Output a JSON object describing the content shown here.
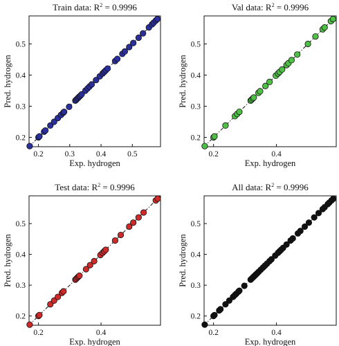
{
  "colors": {
    "train": "#2b2f9c",
    "val": "#4fbf47",
    "test": "#cf2a2a",
    "all": "#111111",
    "fit_line": "#222222"
  },
  "chart_data": [
    {
      "type": "scatter",
      "title_prefix": "Train data: R",
      "title_sup": "2",
      "title_suffix": " = 0.9996",
      "xlabel": "Exp. hydrogen",
      "ylabel": "Pred. hydrogen",
      "xlim": [
        0.17,
        0.59
      ],
      "ylim": [
        0.17,
        0.59
      ],
      "xticks": [
        "0.2",
        "0.3",
        "0.4",
        "0.5"
      ],
      "yticks": [
        "0.2",
        "0.3",
        "0.4",
        "0.5"
      ],
      "fit_line": "dash-dot",
      "color_key": "train",
      "x": [
        0.172,
        0.2,
        0.203,
        0.218,
        0.222,
        0.238,
        0.25,
        0.262,
        0.272,
        0.279,
        0.282,
        0.298,
        0.318,
        0.321,
        0.325,
        0.328,
        0.331,
        0.334,
        0.338,
        0.35,
        0.357,
        0.363,
        0.37,
        0.384,
        0.396,
        0.405,
        0.41,
        0.415,
        0.421,
        0.445,
        0.452,
        0.468,
        0.476,
        0.49,
        0.503,
        0.52,
        0.534,
        0.553,
        0.563,
        0.568,
        0.575,
        0.58
      ],
      "y": [
        0.172,
        0.2,
        0.203,
        0.218,
        0.222,
        0.238,
        0.25,
        0.262,
        0.272,
        0.279,
        0.282,
        0.298,
        0.318,
        0.321,
        0.325,
        0.328,
        0.331,
        0.334,
        0.338,
        0.35,
        0.357,
        0.363,
        0.37,
        0.384,
        0.396,
        0.405,
        0.41,
        0.415,
        0.421,
        0.445,
        0.452,
        0.468,
        0.476,
        0.49,
        0.503,
        0.52,
        0.534,
        0.553,
        0.563,
        0.568,
        0.575,
        0.58
      ]
    },
    {
      "type": "scatter",
      "title_prefix": "Val data: R",
      "title_sup": "2",
      "title_suffix": " = 0.9996",
      "xlabel": "Exp. hydrogen",
      "ylabel": "Pred. hydrogen",
      "xlim": [
        0.17,
        0.59
      ],
      "ylim": [
        0.17,
        0.59
      ],
      "xticks": [
        "0.2",
        "0.4"
      ],
      "yticks": [
        "0.2",
        "0.3",
        "0.4",
        "0.5"
      ],
      "fit_line": "dash-dot",
      "color_key": "val",
      "x": [
        0.172,
        0.2,
        0.203,
        0.238,
        0.268,
        0.275,
        0.282,
        0.318,
        0.321,
        0.325,
        0.328,
        0.343,
        0.348,
        0.365,
        0.378,
        0.398,
        0.405,
        0.41,
        0.418,
        0.432,
        0.438,
        0.448,
        0.466,
        0.5,
        0.524,
        0.547,
        0.553,
        0.573,
        0.58
      ],
      "y": [
        0.172,
        0.2,
        0.203,
        0.238,
        0.268,
        0.275,
        0.282,
        0.318,
        0.321,
        0.325,
        0.328,
        0.343,
        0.348,
        0.365,
        0.378,
        0.398,
        0.405,
        0.41,
        0.418,
        0.432,
        0.438,
        0.448,
        0.466,
        0.5,
        0.524,
        0.547,
        0.553,
        0.573,
        0.58
      ]
    },
    {
      "type": "scatter",
      "title_prefix": "Test data: R",
      "title_sup": "2",
      "title_suffix": " = 0.9996",
      "xlabel": "Exp. hydrogen",
      "ylabel": "Pred. hydrogen",
      "xlim": [
        0.17,
        0.59
      ],
      "ylim": [
        0.17,
        0.59
      ],
      "xticks": [
        "0.2",
        "0.4"
      ],
      "yticks": [
        "0.2",
        "0.3",
        "0.4",
        "0.5"
      ],
      "fit_line": "dash-dot",
      "color_key": "test",
      "x": [
        0.172,
        0.2,
        0.203,
        0.238,
        0.25,
        0.262,
        0.275,
        0.28,
        0.318,
        0.321,
        0.325,
        0.328,
        0.331,
        0.352,
        0.365,
        0.378,
        0.398,
        0.405,
        0.41,
        0.415,
        0.445,
        0.463,
        0.49,
        0.503,
        0.52,
        0.536,
        0.575,
        0.581
      ],
      "y": [
        0.172,
        0.2,
        0.203,
        0.238,
        0.25,
        0.262,
        0.275,
        0.28,
        0.318,
        0.321,
        0.325,
        0.328,
        0.331,
        0.352,
        0.365,
        0.378,
        0.398,
        0.405,
        0.41,
        0.415,
        0.445,
        0.463,
        0.49,
        0.503,
        0.52,
        0.536,
        0.575,
        0.581
      ]
    },
    {
      "type": "scatter",
      "title_prefix": "All data: R",
      "title_sup": "2",
      "title_suffix": " = 0.9996",
      "xlabel": "Exp. hydrogen",
      "ylabel": "Pred. hydrogen",
      "xlim": [
        0.17,
        0.59
      ],
      "ylim": [
        0.17,
        0.59
      ],
      "xticks": [
        "0.2",
        "0.4"
      ],
      "yticks": [
        "0.2",
        "0.3",
        "0.4",
        "0.5"
      ],
      "fit_line": "dash-dot",
      "color_key": "all",
      "x": [
        0.172,
        0.2,
        0.203,
        0.218,
        0.222,
        0.238,
        0.25,
        0.262,
        0.268,
        0.272,
        0.279,
        0.282,
        0.298,
        0.318,
        0.321,
        0.325,
        0.328,
        0.331,
        0.334,
        0.338,
        0.343,
        0.35,
        0.357,
        0.363,
        0.37,
        0.378,
        0.384,
        0.396,
        0.405,
        0.41,
        0.415,
        0.421,
        0.432,
        0.445,
        0.452,
        0.468,
        0.476,
        0.49,
        0.503,
        0.52,
        0.534,
        0.547,
        0.553,
        0.563,
        0.568,
        0.575,
        0.58
      ],
      "y": [
        0.172,
        0.2,
        0.203,
        0.218,
        0.222,
        0.238,
        0.25,
        0.262,
        0.268,
        0.272,
        0.279,
        0.282,
        0.298,
        0.318,
        0.321,
        0.325,
        0.328,
        0.331,
        0.334,
        0.338,
        0.343,
        0.35,
        0.357,
        0.363,
        0.37,
        0.378,
        0.384,
        0.396,
        0.405,
        0.41,
        0.415,
        0.421,
        0.432,
        0.445,
        0.452,
        0.468,
        0.476,
        0.49,
        0.503,
        0.52,
        0.534,
        0.547,
        0.553,
        0.563,
        0.568,
        0.575,
        0.58
      ]
    }
  ]
}
